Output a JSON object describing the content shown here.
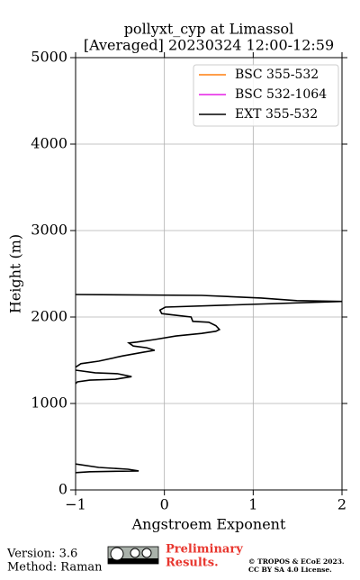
{
  "chart_data": {
    "type": "line",
    "title": [
      "pollyxt_cyp at Limassol",
      "[Averaged] 20230324 12:00-12:59"
    ],
    "x_label": "Angstroem Exponent",
    "y_label": "Height (m)",
    "xlim": [
      -1,
      2
    ],
    "xticks": [
      {
        "value": -1,
        "label": "−1"
      },
      0,
      1,
      2
    ],
    "ylim": [
      0,
      5000
    ],
    "yticks": [
      0,
      1000,
      2000,
      3000,
      4000,
      5000
    ],
    "grid": true,
    "legend": "upper right",
    "series": [
      {
        "name": "BSC 355-532",
        "color": "#ff7f0e",
        "x": [],
        "values": []
      },
      {
        "name": "BSC 532-1064",
        "color": "#e61ee6",
        "x": [],
        "values": []
      },
      {
        "name": "EXT 355-532",
        "color": "#000000",
        "x": [
          -1,
          0.42,
          1.09,
          1.49,
          2.0,
          0.01,
          -0.05,
          -0.03,
          0.13,
          0.3,
          0.32,
          0.5,
          0.58,
          0.62,
          0.58,
          0.42,
          0.13,
          -0.11,
          -0.31,
          -0.4,
          -0.35,
          -0.2,
          -0.11,
          -0.23,
          -0.47,
          -0.74,
          -0.94,
          -1,
          null,
          -1,
          -0.78,
          -0.53,
          -0.37,
          -0.55,
          -0.84,
          -0.98,
          -1,
          null,
          -1,
          -0.74,
          -0.41,
          -0.29,
          -0.84,
          -1
        ],
        "values": [
          2260,
          2250,
          2220,
          2190,
          2180,
          2115,
          2080,
          2040,
          2020,
          2000,
          1950,
          1940,
          1900,
          1855,
          1835,
          1810,
          1780,
          1740,
          1710,
          1700,
          1665,
          1645,
          1615,
          1595,
          1550,
          1490,
          1460,
          1420,
          null,
          1385,
          1355,
          1345,
          1310,
          1280,
          1270,
          1250,
          1230,
          null,
          300,
          260,
          240,
          220,
          210,
          200
        ]
      }
    ]
  },
  "footer": {
    "version": "Version: 3.6",
    "method": "Method: Raman",
    "preliminary": [
      "Preliminary",
      "Results."
    ],
    "license": [
      "© TROPOS & ECoE 2023.",
      "CC BY SA 4.0 License."
    ]
  }
}
